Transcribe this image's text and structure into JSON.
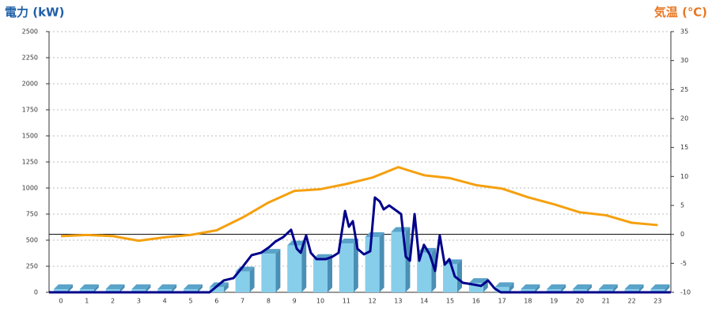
{
  "chart_data": {
    "type": "bar",
    "y_label": "電力 (kW)",
    "y2_label": "気温 (℃)",
    "categories": [
      "0",
      "1",
      "2",
      "3",
      "4",
      "5",
      "6",
      "7",
      "8",
      "9",
      "10",
      "11",
      "12",
      "13",
      "14",
      "15",
      "16",
      "17",
      "18",
      "19",
      "20",
      "21",
      "22",
      "23"
    ],
    "values": [
      0,
      0,
      0,
      0,
      0,
      0,
      50,
      200,
      370,
      450,
      320,
      470,
      530,
      580,
      380,
      270,
      90,
      50,
      0,
      0,
      0,
      0,
      0,
      0
    ],
    "color": "#87ceeb",
    "line": {
      "color": "#00008b",
      "x": [
        -0.46,
        5.73,
        6.28,
        6.65,
        6.95,
        7.35,
        7.71,
        8.02,
        8.26,
        8.57,
        8.87,
        9.09,
        9.24,
        9.45,
        9.63,
        9.85,
        10.21,
        10.46,
        10.7,
        10.95,
        11.1,
        11.25,
        11.43,
        11.68,
        11.92,
        12.1,
        12.29,
        12.44,
        12.65,
        12.9,
        13.11,
        13.29,
        13.45,
        13.63,
        13.81,
        13.99,
        14.21,
        14.42,
        14.6,
        14.79,
        14.97,
        15.18,
        15.49,
        15.88,
        16.19,
        16.46,
        16.71,
        16.95,
        23.5
      ],
      "values": [
        0,
        0,
        114,
        136,
        227,
        356,
        379,
        432,
        485,
        530,
        600,
        417,
        379,
        545,
        379,
        318,
        318,
        341,
        379,
        780,
        629,
        682,
        417,
        364,
        394,
        909,
        871,
        795,
        833,
        788,
        750,
        341,
        303,
        750,
        303,
        455,
        364,
        205,
        545,
        265,
        318,
        152,
        91,
        76,
        61,
        114,
        38,
        0,
        0
      ]
    },
    "temperature": {
      "color": "#f5a00f",
      "axis": "y2",
      "values": [
        -0.3,
        -0.1,
        -0.3,
        -1.1,
        -0.5,
        -0.1,
        0.7,
        2.9,
        5.5,
        7.5,
        7.8,
        8.7,
        9.8,
        11.6,
        10.2,
        9.7,
        8.5,
        7.9,
        6.4,
        5.2,
        3.8,
        3.3,
        2.0,
        1.6
      ]
    },
    "ylim": [
      0,
      2500
    ],
    "yticks": [
      0,
      250,
      500,
      750,
      1000,
      1250,
      1500,
      1750,
      2000,
      2250,
      2500
    ],
    "y2lim": [
      -10,
      35
    ],
    "y2ticks": [
      -10,
      -5,
      0,
      5,
      10,
      15,
      20,
      25,
      30,
      35
    ],
    "grid": true
  }
}
